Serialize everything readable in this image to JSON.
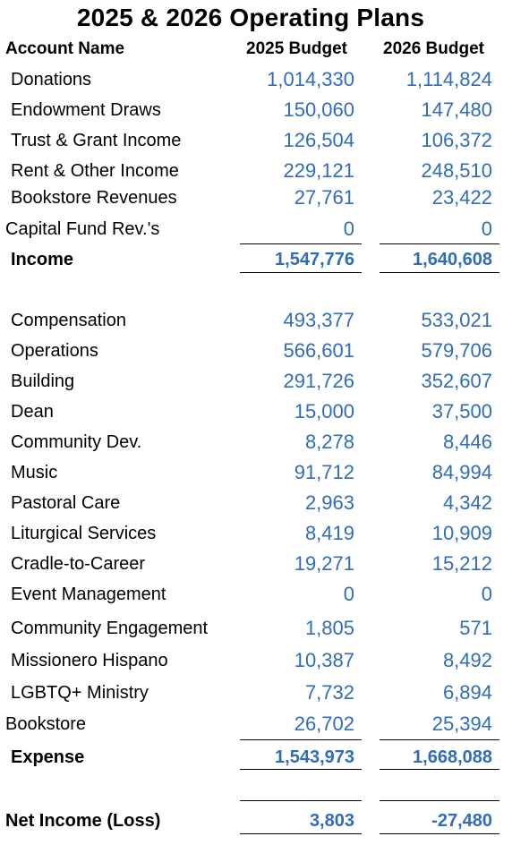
{
  "title": "2025 & 2026 Operating Plans",
  "headers": {
    "account": "Account Name",
    "y2025": "2025 Budget",
    "y2026": "2026 Budget"
  },
  "income_rows": [
    {
      "label": "Donations",
      "v2025": "1,014,330",
      "v2026": "1,114,824"
    },
    {
      "label": "Endowment Draws",
      "v2025": "150,060",
      "v2026": "147,480"
    },
    {
      "label": "Trust & Grant Income",
      "v2025": "126,504",
      "v2026": "106,372"
    },
    {
      "label": "Rent & Other Income",
      "v2025": "229,121",
      "v2026": "248,510"
    },
    {
      "label": "Bookstore Revenues",
      "v2025": "27,761",
      "v2026": "23,422"
    },
    {
      "label": "Capital Fund Rev.'s",
      "v2025": "0",
      "v2026": "0"
    }
  ],
  "income_total": {
    "label": "Income",
    "v2025": "1,547,776",
    "v2026": "1,640,608"
  },
  "expense_rows": [
    {
      "label": "Compensation",
      "v2025": "493,377",
      "v2026": "533,021"
    },
    {
      "label": "Operations",
      "v2025": "566,601",
      "v2026": "579,706"
    },
    {
      "label": "Building",
      "v2025": "291,726",
      "v2026": "352,607"
    },
    {
      "label": "Dean",
      "v2025": "15,000",
      "v2026": "37,500"
    },
    {
      "label": "Community Dev.",
      "v2025": "8,278",
      "v2026": "8,446"
    },
    {
      "label": "Music",
      "v2025": "91,712",
      "v2026": "84,994"
    },
    {
      "label": "Pastoral Care",
      "v2025": "2,963",
      "v2026": "4,342"
    },
    {
      "label": "Liturgical Services",
      "v2025": "8,419",
      "v2026": "10,909"
    },
    {
      "label": "Cradle-to-Career",
      "v2025": "19,271",
      "v2026": "15,212"
    },
    {
      "label": "Event Management",
      "v2025": "0",
      "v2026": "0"
    },
    {
      "label": "Community Engagement",
      "v2025": "1,805",
      "v2026": "571"
    },
    {
      "label": "Missionero Hispano",
      "v2025": "10,387",
      "v2026": "8,492"
    },
    {
      "label": "LGBTQ+ Ministry",
      "v2025": "7,732",
      "v2026": "6,894"
    },
    {
      "label": "Bookstore",
      "v2025": "26,702",
      "v2026": "25,394"
    }
  ],
  "expense_total": {
    "label": "Expense",
    "v2025": "1,543,973",
    "v2026": "1,668,088"
  },
  "net": {
    "label": "Net Income (Loss)",
    "v2025": "3,803",
    "v2026": "-27,480"
  },
  "colors": {
    "value_blue": "#2f6cba",
    "text": "#000000"
  }
}
